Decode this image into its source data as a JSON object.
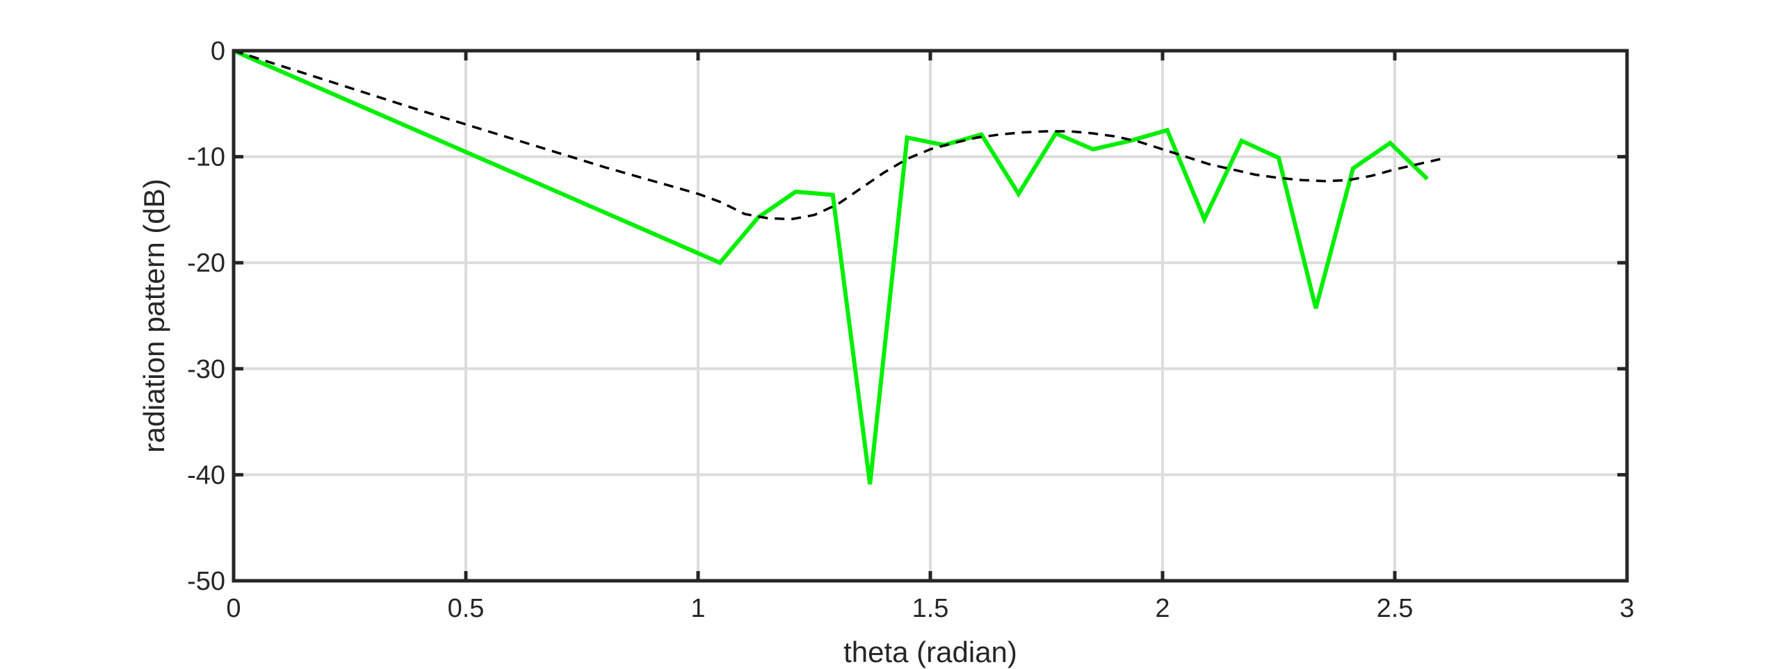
{
  "chart_data": {
    "type": "line",
    "title": "",
    "xlabel": "theta (radian)",
    "ylabel": "radiation pattern (dB)",
    "xlim": [
      0,
      3
    ],
    "ylim": [
      -50,
      0
    ],
    "xticks": [
      0,
      0.5,
      1,
      1.5,
      2,
      2.5,
      3
    ],
    "xtick_labels": [
      "0",
      "0.5",
      "1",
      "1.5",
      "2",
      "2.5",
      "3"
    ],
    "yticks": [
      0,
      -10,
      -20,
      -30,
      -40,
      -50
    ],
    "ytick_labels": [
      "0",
      "-10",
      "-20",
      "-30",
      "-40",
      "-50"
    ],
    "grid": true,
    "series": [
      {
        "style": "solid",
        "color": "#00ee00",
        "x": [
          0,
          1.047,
          1.13,
          1.21,
          1.29,
          1.37,
          1.45,
          1.53,
          1.61,
          1.69,
          1.77,
          1.85,
          1.93,
          2.01,
          2.09,
          2.17,
          2.25,
          2.33,
          2.41,
          2.49,
          2.57
        ],
        "y": [
          0,
          -20.0,
          -15.7,
          -13.3,
          -13.6,
          -40.9,
          -8.2,
          -8.9,
          -7.9,
          -13.5,
          -7.8,
          -9.3,
          -8.5,
          -7.5,
          -15.9,
          -8.5,
          -10.1,
          -24.3,
          -11.1,
          -8.7,
          -12.1
        ]
      },
      {
        "style": "dashed",
        "color": "#000000",
        "x": [
          0,
          0.2,
          0.4,
          0.6,
          0.8,
          1.0,
          1.05,
          1.1,
          1.15,
          1.2,
          1.25,
          1.3,
          1.35,
          1.4,
          1.45,
          1.5,
          1.55,
          1.6,
          1.65,
          1.7,
          1.75,
          1.8,
          1.85,
          1.9,
          1.95,
          2.0,
          2.05,
          2.1,
          2.15,
          2.2,
          2.25,
          2.3,
          2.35,
          2.4,
          2.45,
          2.5,
          2.55,
          2.6
        ],
        "y": [
          0,
          -2.8,
          -5.6,
          -8.3,
          -11.0,
          -13.5,
          -14.3,
          -15.4,
          -15.8,
          -15.9,
          -15.5,
          -14.5,
          -13.0,
          -11.5,
          -10.2,
          -9.3,
          -8.7,
          -8.2,
          -7.9,
          -7.7,
          -7.6,
          -7.6,
          -7.8,
          -8.1,
          -8.6,
          -9.3,
          -10.0,
          -10.7,
          -11.2,
          -11.7,
          -12.0,
          -12.2,
          -12.3,
          -12.2,
          -11.8,
          -11.2,
          -10.7,
          -10.2
        ]
      }
    ]
  }
}
